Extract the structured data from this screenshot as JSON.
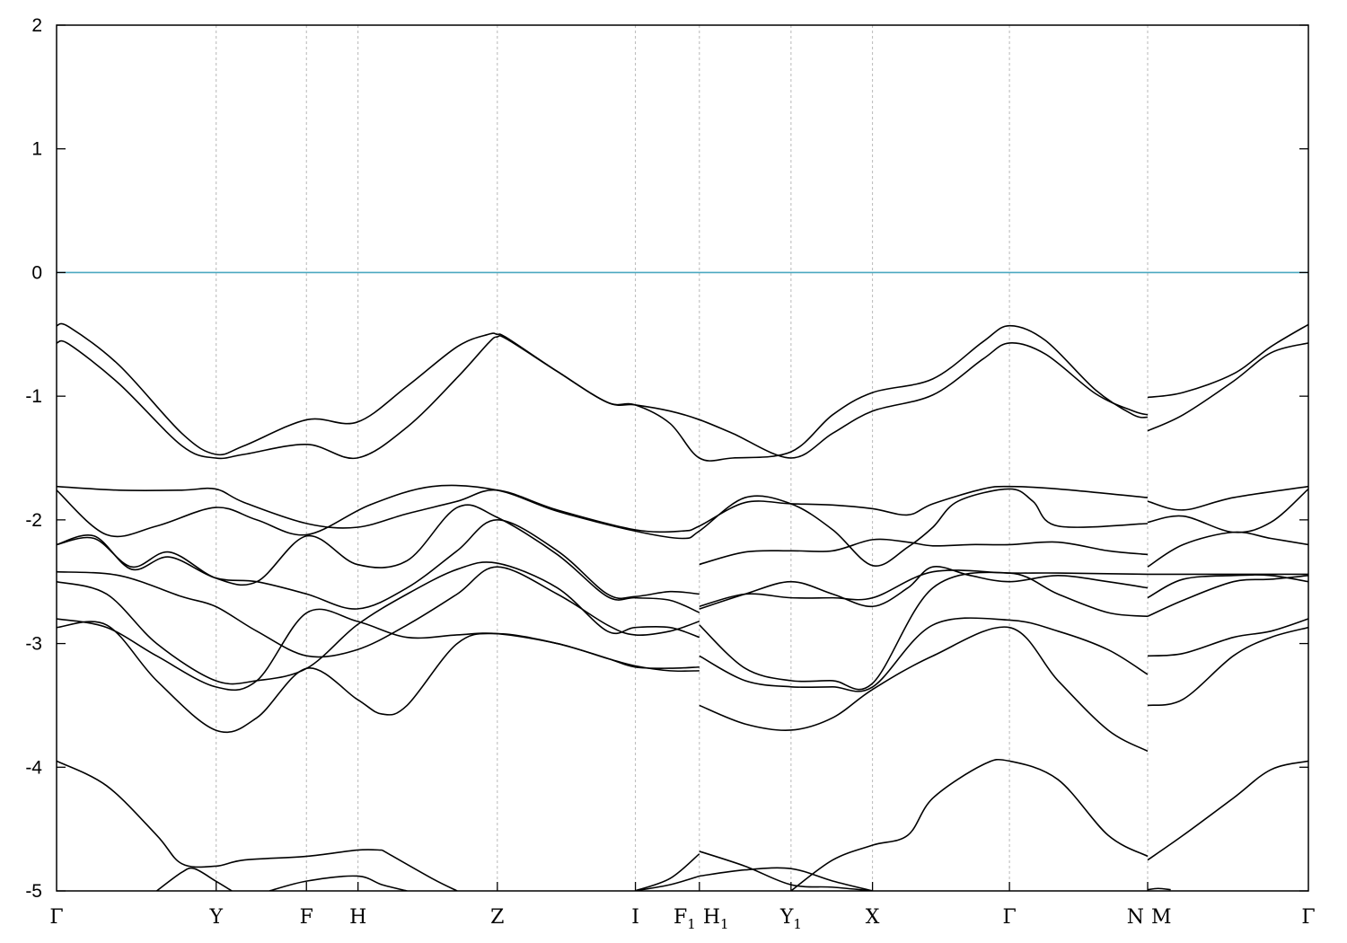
{
  "chart_data": {
    "type": "line",
    "title": "",
    "xlabel": "",
    "ylabel": "",
    "ylim": [
      -5,
      2
    ],
    "xlim": [
      0,
      1
    ],
    "yticks": [
      "-5",
      "-4",
      "-3",
      "-2",
      "-1",
      "0",
      "1",
      "2"
    ],
    "high_symmetry_points": [
      {
        "label": "Γ",
        "sub": "",
        "x": 0.0
      },
      {
        "label": "Y",
        "sub": "",
        "x": 0.1275
      },
      {
        "label": "F",
        "sub": "",
        "x": 0.1996
      },
      {
        "label": "H",
        "sub": "",
        "x": 0.2408
      },
      {
        "label": "Z",
        "sub": "",
        "x": 0.3521
      },
      {
        "label": "I",
        "sub": "",
        "x": 0.4624
      },
      {
        "label": "F",
        "sub": "1",
        "x": 0.5135
      },
      {
        "label": "H",
        "sub": "1",
        "x": 0.5135
      },
      {
        "label": "Y",
        "sub": "1",
        "x": 0.5867
      },
      {
        "label": "X",
        "sub": "",
        "x": 0.6518
      },
      {
        "label": "Γ",
        "sub": "",
        "x": 0.7612
      },
      {
        "label": "N",
        "sub": "",
        "x": 0.8716
      },
      {
        "label": "M",
        "sub": "",
        "x": 0.8716
      },
      {
        "label": "Γ",
        "sub": "",
        "x": 1.0
      }
    ],
    "reference_line": {
      "y": 0,
      "color": "#4aa8c0"
    },
    "line_color": "#000000",
    "grid": "vertical dashed at high-symmetry points",
    "series": [
      {
        "x": [
          0,
          0.01,
          0.05,
          0.1,
          0.127,
          0.15,
          0.2,
          0.24,
          0.28,
          0.32,
          0.345,
          0.352,
          0.36,
          0.4,
          0.44,
          0.462,
          0.49,
          0.5135,
          0.54,
          0.5867,
          0.62,
          0.652,
          0.7,
          0.74,
          0.7612,
          0.79,
          0.83,
          0.86,
          0.8716
        ],
        "y": [
          -0.43,
          -0.44,
          -0.75,
          -1.3,
          -1.47,
          -1.4,
          -1.19,
          -1.21,
          -0.92,
          -0.6,
          -0.5,
          -0.5,
          -0.53,
          -0.8,
          -1.05,
          -1.07,
          -1.22,
          -1.5,
          -1.5,
          -1.45,
          -1.15,
          -0.97,
          -0.86,
          -0.56,
          -0.43,
          -0.55,
          -0.95,
          -1.15,
          -1.17
        ]
      },
      {
        "x": [
          0,
          0.01,
          0.05,
          0.1,
          0.127,
          0.15,
          0.2,
          0.24,
          0.28,
          0.32,
          0.345,
          0.352,
          0.36,
          0.4,
          0.44,
          0.462,
          0.49,
          0.5135,
          0.54,
          0.5867,
          0.62,
          0.652,
          0.7,
          0.74,
          0.7612,
          0.79,
          0.83,
          0.86,
          0.8716
        ],
        "y": [
          -0.57,
          -0.58,
          -0.9,
          -1.4,
          -1.5,
          -1.47,
          -1.39,
          -1.5,
          -1.25,
          -0.85,
          -0.57,
          -0.52,
          -0.54,
          -0.8,
          -1.05,
          -1.07,
          -1.12,
          -1.19,
          -1.3,
          -1.5,
          -1.3,
          -1.12,
          -0.99,
          -0.7,
          -0.57,
          -0.66,
          -0.98,
          -1.12,
          -1.15
        ]
      },
      {
        "x": [
          0.8716,
          0.9,
          0.94,
          0.97,
          1.0
        ],
        "y": [
          -1.01,
          -0.97,
          -0.82,
          -0.6,
          -0.42
        ]
      },
      {
        "x": [
          0.8716,
          0.9,
          0.94,
          0.97,
          1.0
        ],
        "y": [
          -1.28,
          -1.15,
          -0.88,
          -0.65,
          -0.57
        ]
      },
      {
        "x": [
          0,
          0.05,
          0.1,
          0.127,
          0.15,
          0.2,
          0.24,
          0.28,
          0.32,
          0.352,
          0.4,
          0.462,
          0.5,
          0.5135,
          0.55,
          0.5867,
          0.62,
          0.652,
          0.68,
          0.7,
          0.74,
          0.7612,
          0.8,
          0.8716
        ],
        "y": [
          -1.73,
          -1.76,
          -1.76,
          -1.75,
          -1.86,
          -2.03,
          -2.06,
          -1.95,
          -1.85,
          -1.76,
          -1.92,
          -2.08,
          -2.09,
          -2.05,
          -1.86,
          -1.87,
          -1.88,
          -1.91,
          -1.96,
          -1.87,
          -1.75,
          -1.73,
          -1.75,
          -1.82
        ]
      },
      {
        "x": [
          0.8716,
          0.9,
          0.94,
          1.0
        ],
        "y": [
          -1.85,
          -1.92,
          -1.82,
          -1.73
        ]
      },
      {
        "x": [
          0,
          0.04,
          0.08,
          0.127,
          0.16,
          0.2,
          0.25,
          0.3,
          0.352,
          0.4,
          0.462,
          0.5,
          0.5135,
          0.55,
          0.5867,
          0.62,
          0.652,
          0.68,
          0.7,
          0.72,
          0.7612,
          0.78,
          0.8,
          0.8716
        ],
        "y": [
          -1.76,
          -2.12,
          -2.05,
          -1.9,
          -2.0,
          -2.12,
          -1.88,
          -1.73,
          -1.76,
          -1.93,
          -2.09,
          -2.15,
          -2.09,
          -1.82,
          -1.87,
          -2.08,
          -2.37,
          -2.22,
          -2.06,
          -1.85,
          -1.75,
          -1.85,
          -2.05,
          -2.03
        ]
      },
      {
        "x": [
          0.8716,
          0.9,
          0.94,
          0.97,
          1.0
        ],
        "y": [
          -2.02,
          -1.97,
          -2.1,
          -2.02,
          -1.75
        ]
      },
      {
        "x": [
          0,
          0.03,
          0.06,
          0.09,
          0.127,
          0.16,
          0.2,
          0.24,
          0.28,
          0.32,
          0.352,
          0.4,
          0.44,
          0.462,
          0.49,
          0.5135
        ],
        "y": [
          -2.2,
          -2.13,
          -2.4,
          -2.3,
          -2.47,
          -2.5,
          -2.6,
          -2.72,
          -2.55,
          -2.25,
          -2.0,
          -2.25,
          -2.6,
          -2.62,
          -2.58,
          -2.6
        ]
      },
      {
        "x": [
          0.5135,
          0.55,
          0.5867,
          0.62,
          0.652,
          0.68,
          0.7,
          0.73,
          0.7612,
          0.8,
          0.84,
          0.8716
        ],
        "y": [
          -2.36,
          -2.26,
          -2.25,
          -2.25,
          -2.16,
          -2.18,
          -2.21,
          -2.2,
          -2.2,
          -2.18,
          -2.25,
          -2.28
        ]
      },
      {
        "x": [
          0.8716,
          0.9,
          0.94,
          0.97,
          1.0
        ],
        "y": [
          -2.38,
          -2.2,
          -2.1,
          -2.15,
          -2.2
        ]
      },
      {
        "x": [
          0,
          0.03,
          0.06,
          0.09,
          0.127,
          0.16,
          0.2,
          0.24,
          0.28,
          0.32,
          0.352,
          0.4,
          0.44,
          0.462,
          0.49,
          0.5135
        ],
        "y": [
          -2.2,
          -2.15,
          -2.38,
          -2.26,
          -2.47,
          -2.5,
          -2.13,
          -2.36,
          -2.33,
          -1.9,
          -1.98,
          -2.28,
          -2.62,
          -2.63,
          -2.65,
          -2.75
        ]
      },
      {
        "x": [
          0.5135,
          0.55,
          0.5867,
          0.62,
          0.652,
          0.68,
          0.7,
          0.73,
          0.7612,
          0.8,
          0.84,
          0.8716
        ],
        "y": [
          -2.72,
          -2.6,
          -2.5,
          -2.6,
          -2.7,
          -2.55,
          -2.38,
          -2.45,
          -2.5,
          -2.45,
          -2.5,
          -2.55
        ]
      },
      {
        "x": [
          0.8716,
          0.9,
          0.94,
          0.97,
          1.0
        ],
        "y": [
          -2.63,
          -2.48,
          -2.45,
          -2.45,
          -2.5
        ]
      },
      {
        "x": [
          0,
          0.05,
          0.1,
          0.127,
          0.16,
          0.2,
          0.24,
          0.28,
          0.32,
          0.352,
          0.4,
          0.44,
          0.462,
          0.49,
          0.5135
        ],
        "y": [
          -2.42,
          -2.45,
          -2.62,
          -2.7,
          -2.9,
          -3.1,
          -3.05,
          -2.85,
          -2.6,
          -2.38,
          -2.6,
          -2.85,
          -2.93,
          -2.9,
          -2.82
        ]
      },
      {
        "x": [
          0.5135,
          0.55,
          0.5867,
          0.62,
          0.652,
          0.7,
          0.7612,
          0.8,
          0.8716
        ],
        "y": [
          -2.7,
          -2.6,
          -2.63,
          -2.63,
          -2.63,
          -2.42,
          -2.43,
          -2.43,
          -2.44
        ]
      },
      {
        "x": [
          0.8716,
          0.9,
          0.94,
          1.0
        ],
        "y": [
          -2.44,
          -2.44,
          -2.44,
          -2.44
        ]
      },
      {
        "x": [
          0,
          0.04,
          0.08,
          0.127,
          0.16,
          0.2,
          0.24,
          0.28,
          0.32,
          0.352,
          0.4,
          0.44,
          0.462,
          0.49,
          0.5135
        ],
        "y": [
          -2.5,
          -2.6,
          -3.0,
          -3.3,
          -3.3,
          -3.2,
          -2.85,
          -2.6,
          -2.4,
          -2.35,
          -2.55,
          -2.9,
          -2.87,
          -2.87,
          -2.95
        ]
      },
      {
        "x": [
          0.5135,
          0.55,
          0.5867,
          0.62,
          0.652,
          0.7,
          0.7612,
          0.8,
          0.84,
          0.8716
        ],
        "y": [
          -2.85,
          -3.2,
          -3.3,
          -3.3,
          -3.32,
          -2.55,
          -2.43,
          -2.6,
          -2.75,
          -2.78
        ]
      },
      {
        "x": [
          0.8716,
          0.9,
          0.94,
          0.97,
          1.0
        ],
        "y": [
          -2.78,
          -2.65,
          -2.5,
          -2.48,
          -2.45
        ]
      },
      {
        "x": [
          0,
          0.04,
          0.08,
          0.127,
          0.16,
          0.2,
          0.24,
          0.28,
          0.32,
          0.352,
          0.4,
          0.44,
          0.462,
          0.49,
          0.5135
        ],
        "y": [
          -2.8,
          -2.87,
          -3.1,
          -3.35,
          -3.3,
          -2.75,
          -2.82,
          -2.95,
          -2.93,
          -2.92,
          -3.0,
          -3.12,
          -3.19,
          -3.2,
          -3.19
        ]
      },
      {
        "x": [
          0.5135,
          0.55,
          0.5867,
          0.62,
          0.652,
          0.7,
          0.7612,
          0.8,
          0.84,
          0.8716
        ],
        "y": [
          -3.1,
          -3.3,
          -3.35,
          -3.35,
          -3.35,
          -2.85,
          -2.81,
          -2.9,
          -3.05,
          -3.25
        ]
      },
      {
        "x": [
          0.8716,
          0.9,
          0.94,
          0.97,
          1.0
        ],
        "y": [
          -3.1,
          -3.08,
          -2.95,
          -2.9,
          -2.8
        ]
      },
      {
        "x": [
          0,
          0.04,
          0.08,
          0.127,
          0.16,
          0.2,
          0.24,
          0.26,
          0.28,
          0.32,
          0.352,
          0.4,
          0.44,
          0.462,
          0.49,
          0.5135
        ],
        "y": [
          -2.87,
          -2.85,
          -3.3,
          -3.7,
          -3.6,
          -3.2,
          -3.45,
          -3.57,
          -3.5,
          -3.0,
          -2.92,
          -3.0,
          -3.12,
          -3.18,
          -3.22,
          -3.22
        ]
      },
      {
        "x": [
          0.5135,
          0.55,
          0.5867,
          0.62,
          0.652,
          0.7,
          0.7612,
          0.8,
          0.84,
          0.8716
        ],
        "y": [
          -3.5,
          -3.65,
          -3.7,
          -3.6,
          -3.37,
          -3.1,
          -2.87,
          -3.3,
          -3.7,
          -3.87
        ]
      },
      {
        "x": [
          0.8716,
          0.9,
          0.94,
          0.97,
          1.0
        ],
        "y": [
          -3.5,
          -3.45,
          -3.1,
          -2.95,
          -2.87
        ]
      },
      {
        "x": [
          0,
          0.04,
          0.08,
          0.1,
          0.127,
          0.15,
          0.2,
          0.24,
          0.26
        ],
        "y": [
          -3.95,
          -4.15,
          -4.55,
          -4.78,
          -4.8,
          -4.75,
          -4.72,
          -4.67,
          -4.67
        ]
      },
      {
        "x": [
          0.26,
          0.3,
          0.32
        ],
        "y": [
          -4.67,
          -4.9,
          -5.0
        ]
      },
      {
        "x": [
          0.08,
          0.1,
          0.11,
          0.127,
          0.14
        ],
        "y": [
          -5.0,
          -4.85,
          -4.82,
          -4.92,
          -5.0
        ]
      },
      {
        "x": [
          0.17,
          0.2,
          0.24,
          0.26,
          0.28
        ],
        "y": [
          -5.0,
          -4.92,
          -4.88,
          -4.95,
          -5.0
        ]
      },
      {
        "x": [
          0.462,
          0.49,
          0.5135
        ],
        "y": [
          -5.0,
          -4.9,
          -4.7
        ]
      },
      {
        "x": [
          0.462,
          0.49,
          0.5135
        ],
        "y": [
          -5.0,
          -4.95,
          -4.88
        ]
      },
      {
        "x": [
          0.5135,
          0.55,
          0.5867,
          0.62,
          0.652
        ],
        "y": [
          -4.68,
          -4.8,
          -4.95,
          -4.97,
          -5.0
        ]
      },
      {
        "x": [
          0.5135,
          0.55,
          0.5867,
          0.62,
          0.652
        ],
        "y": [
          -4.88,
          -4.83,
          -4.82,
          -4.92,
          -5.0
        ]
      },
      {
        "x": [
          0.5867,
          0.62,
          0.652,
          0.68,
          0.7,
          0.74,
          0.7612,
          0.8,
          0.84,
          0.8716
        ],
        "y": [
          -5.0,
          -4.75,
          -4.63,
          -4.55,
          -4.25,
          -3.98,
          -3.95,
          -4.1,
          -4.55,
          -4.72
        ]
      },
      {
        "x": [
          0.8716,
          0.9,
          0.94,
          0.97,
          1.0
        ],
        "y": [
          -4.75,
          -4.55,
          -4.25,
          -4.02,
          -3.95
        ]
      },
      {
        "x": [
          0.8716,
          0.88,
          0.89
        ],
        "y": [
          -4.99,
          -4.98,
          -4.99
        ]
      }
    ]
  }
}
